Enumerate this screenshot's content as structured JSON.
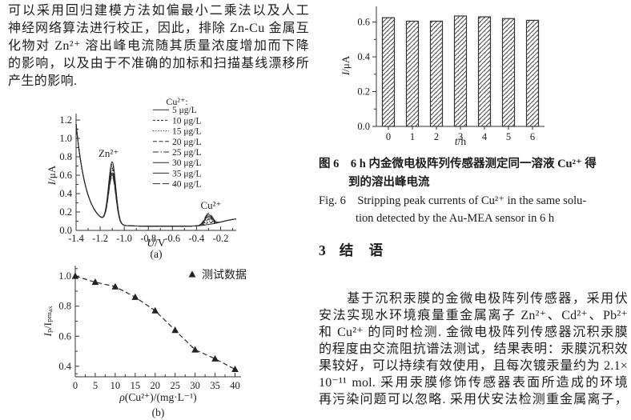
{
  "page": {
    "background": "#ffffff",
    "ink": "#1c1c1c",
    "chart_line_color": "#2a2a2a",
    "axis_color": "#333333"
  },
  "left_column": {
    "paragraph_lines": [
      "可以采用回归建模方法如偏最小二乘法以及人工",
      "神经网络算法进行校正，因此，排除 Zn-Cu 金属互",
      "化物对 Zn²⁺ 溶出峰电流随其质量浓度增加而下降",
      "的影响，以及由于不准确的加标和扫描基线漂移所",
      "产生的影响."
    ]
  },
  "right_column": {
    "figure6_caption_cn_lines": [
      "图 6　6 h 内金微电极阵列传感器测定同一溶液 Cu²⁺ 得",
      "到的溶出峰电流"
    ],
    "figure6_caption_en_lines": [
      "Fig. 6　Stripping peak currents of Cu²⁺ in the same solu-",
      "tion detected by the Au-MEA sensor in 6 h"
    ],
    "section_number": "3",
    "section_title": "结　语",
    "paragraph_lines": [
      "　　基于沉积汞膜的金微电极阵列传感器，采用伏",
      "安法实现水环境痕量重金属离子 Zn²⁺、Cd²⁺、Pb²⁺",
      "和 Cu²⁺ 的同时检测. 金微电极阵列传感器沉积汞膜",
      "的程度由交流阻抗谱法测试，结果表明：汞膜沉积效",
      "果较好，可以持续有效使用，且每次镀汞量约为 2.1×",
      "10⁻¹¹ mol. 采用汞膜修饰传感器表面所造成的环境",
      "再污染问题可以忽略. 采用伏安法检测重金属离子，"
    ]
  },
  "chart_data": [
    {
      "id": "fig_a",
      "type": "line",
      "title": "",
      "xlabel": "U/V",
      "ylabel": "I/μA",
      "sublabel": "(a)",
      "xlim": [
        -1.4,
        -0.07
      ],
      "ylim": [
        0,
        1.27
      ],
      "xticks": [
        -1.4,
        -1.2,
        -1.0,
        -0.8,
        -0.6,
        -0.4,
        -0.2
      ],
      "yticks": [
        0.0,
        0.2,
        0.4,
        0.6,
        0.8,
        1.0,
        1.2
      ],
      "grid": false,
      "legend_position": "upper-middle-right",
      "legend_title": "Cu²⁺:",
      "annotations": [
        {
          "text": "Zn²⁺",
          "x": -1.13,
          "y": 0.8
        },
        {
          "text": "Cu²⁺",
          "x": -0.28,
          "y": 0.235
        }
      ],
      "series": [
        {
          "name": "5 μg/L",
          "zn_peak": 0.67,
          "cu_peak": 0.004,
          "dash": ""
        },
        {
          "name": "10 μg/L",
          "zn_peak": 0.645,
          "cu_peak": 0.022,
          "dash": "3 2"
        },
        {
          "name": "15 μg/L",
          "zn_peak": 0.62,
          "cu_peak": 0.04,
          "dash": "1.2 2"
        },
        {
          "name": "20 μg/L",
          "zn_peak": 0.6,
          "cu_peak": 0.058,
          "dash": "5 2.5"
        },
        {
          "name": "25 μg/L",
          "zn_peak": 0.575,
          "cu_peak": 0.075,
          "dash": "7 2.5 1.5 2.5"
        },
        {
          "name": "30 μg/L",
          "zn_peak": 0.55,
          "cu_peak": 0.092,
          "dash": ""
        },
        {
          "name": "35 μg/L",
          "zn_peak": 0.53,
          "cu_peak": 0.108,
          "dash": ""
        },
        {
          "name": "40 μg/L",
          "zn_peak": 0.51,
          "cu_peak": 0.125,
          "dash": "9 3"
        }
      ],
      "curve_model": {
        "wall_amp": 1.115,
        "wall_tau": 0.084,
        "zn_center": -1.1,
        "zn_sigma": 0.03,
        "cu_center": -0.3,
        "cu_sigma": 0.032,
        "baseline": 0.045,
        "rise_amp": 0.09,
        "rise_center": -0.2,
        "rise_tau": 0.065
      }
    },
    {
      "id": "fig_b",
      "type": "scatter",
      "title": "",
      "xlabel": "ρ(Cu²⁺)/(mg·L⁻¹)",
      "ylabel": "Iₚ/Iₚₘₐₓ",
      "sublabel": "(b)",
      "legend": "测试数据",
      "marker": "triangle",
      "line_style": "dashed",
      "xlim": [
        0,
        41.5
      ],
      "ylim": [
        0.33,
        1.07
      ],
      "xticks": [
        0,
        5,
        10,
        15,
        20,
        25,
        30,
        35,
        40
      ],
      "yticks": [
        0.4,
        0.6,
        0.8,
        1.0
      ],
      "grid": false,
      "x": [
        0,
        5,
        10,
        15,
        20,
        25,
        30,
        35,
        40
      ],
      "y": [
        1.0,
        0.96,
        0.93,
        0.86,
        0.77,
        0.64,
        0.51,
        0.45,
        0.38
      ]
    },
    {
      "id": "fig6",
      "type": "bar",
      "title": "",
      "xlabel": "t/h",
      "ylabel": "I/μA",
      "categories": [
        "0",
        "1",
        "2",
        "3",
        "4",
        "5",
        "6"
      ],
      "values": [
        0.625,
        0.605,
        0.605,
        0.635,
        0.63,
        0.62,
        0.61
      ],
      "yticks": [
        0.0,
        0.2,
        0.4,
        0.6
      ],
      "ylim": [
        0,
        0.69
      ],
      "grid": false,
      "hatch": "diagonal"
    }
  ]
}
